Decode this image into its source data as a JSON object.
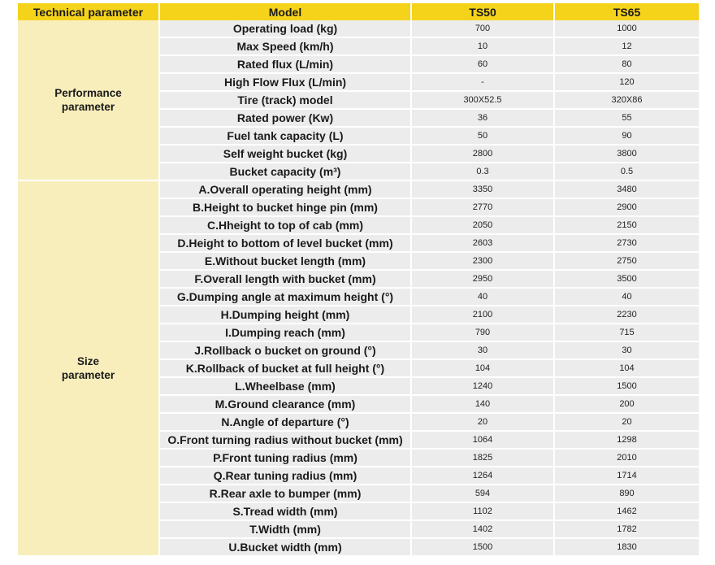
{
  "header": {
    "technical_parameter": "Technical parameter",
    "model": "Model",
    "models": [
      "TS50",
      "TS65"
    ]
  },
  "groups": [
    {
      "label_lines": [
        "Performance",
        "parameter"
      ],
      "rows": [
        {
          "param": "Operating load (kg)",
          "values": [
            "700",
            "1000"
          ]
        },
        {
          "param": "Max Speed (km/h)",
          "values": [
            "10",
            "12"
          ]
        },
        {
          "param": "Rated flux (L/min)",
          "values": [
            "60",
            "80"
          ]
        },
        {
          "param": "High Flow Flux (L/min)",
          "values": [
            "-",
            "120"
          ]
        },
        {
          "param": "Tire (track) model",
          "values": [
            "300X52.5",
            "320X86"
          ]
        },
        {
          "param": "Rated power (Kw)",
          "values": [
            "36",
            "55"
          ]
        },
        {
          "param": "Fuel tank capacity (L)",
          "values": [
            "50",
            "90"
          ]
        },
        {
          "param": "Self weight bucket (kg)",
          "values": [
            "2800",
            "3800"
          ]
        },
        {
          "param": "Bucket capacity (m³)",
          "values": [
            "0.3",
            "0.5"
          ]
        }
      ]
    },
    {
      "label_lines": [
        "Size",
        "parameter"
      ],
      "rows": [
        {
          "param": "A.Overall operating height (mm)",
          "values": [
            "3350",
            "3480"
          ]
        },
        {
          "param": "B.Height to bucket hinge pin (mm)",
          "values": [
            "2770",
            "2900"
          ]
        },
        {
          "param": "C.Hheight to top of cab (mm)",
          "values": [
            "2050",
            "2150"
          ]
        },
        {
          "param": "D.Height to bottom of level bucket (mm)",
          "values": [
            "2603",
            "2730"
          ]
        },
        {
          "param": "E.Without bucket length (mm)",
          "values": [
            "2300",
            "2750"
          ]
        },
        {
          "param": "F.Overall length with bucket (mm)",
          "values": [
            "2950",
            "3500"
          ]
        },
        {
          "param": "G.Dumping angle at maximum height (°)",
          "values": [
            "40",
            "40"
          ]
        },
        {
          "param": "H.Dumping height (mm)",
          "values": [
            "2100",
            "2230"
          ]
        },
        {
          "param": "I.Dumping reach (mm)",
          "values": [
            "790",
            "715"
          ]
        },
        {
          "param": "J.Rollback o bucket on ground (°)",
          "values": [
            "30",
            "30"
          ]
        },
        {
          "param": "K.Rollback of bucket at full height (°)",
          "values": [
            "104",
            "104"
          ]
        },
        {
          "param": "L.Wheelbase (mm)",
          "values": [
            "1240",
            "1500"
          ]
        },
        {
          "param": "M.Ground clearance (mm)",
          "values": [
            "140",
            "200"
          ]
        },
        {
          "param": "N.Angle of departure (°)",
          "values": [
            "20",
            "20"
          ]
        },
        {
          "param": "O.Front turning radius without bucket (mm)",
          "values": [
            "1064",
            "1298"
          ]
        },
        {
          "param": "P.Front tuning radius (mm)",
          "values": [
            "1825",
            "2010"
          ]
        },
        {
          "param": "Q.Rear tuning radius (mm)",
          "values": [
            "1264",
            "1714"
          ]
        },
        {
          "param": "R.Rear axle to bumper (mm)",
          "values": [
            "594",
            "890"
          ]
        },
        {
          "param": "S.Tread width (mm)",
          "values": [
            "1102",
            "1462"
          ]
        },
        {
          "param": "T.Width (mm)",
          "values": [
            "1402",
            "1782"
          ]
        },
        {
          "param": "U.Bucket width (mm)",
          "values": [
            "1500",
            "1830"
          ]
        }
      ]
    }
  ]
}
